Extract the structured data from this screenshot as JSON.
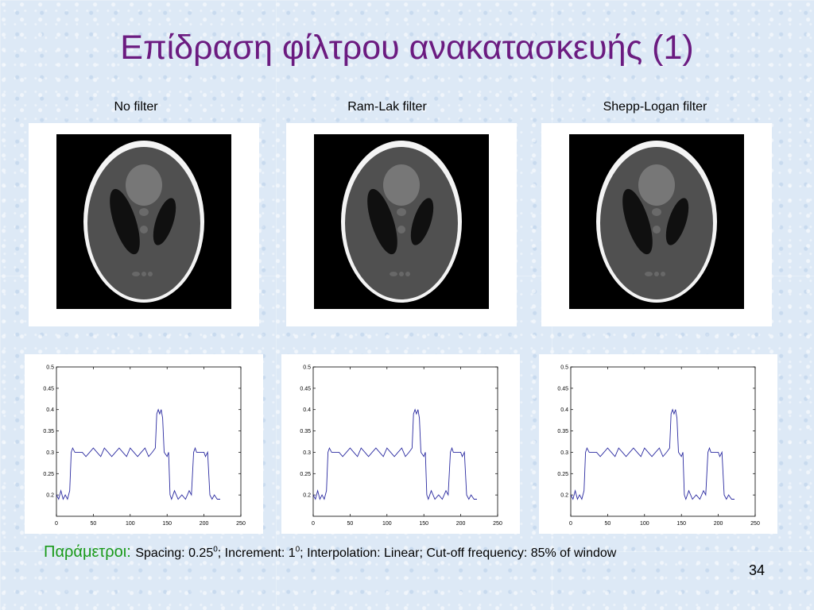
{
  "slide": {
    "title": "Επίδραση φίλτρου ανακατασκευής (1)",
    "page_number": "34"
  },
  "panels": [
    {
      "label": "No filter"
    },
    {
      "label": "Ram-Lak filter"
    },
    {
      "label": "Shepp-Logan filter"
    }
  ],
  "parameters": {
    "label": "Παράμετροι:",
    "spacing_text": "Spacing: 0.25",
    "spacing_sup": "0",
    "increment_text": "; Increment: 1",
    "increment_sup": "0",
    "rest_text": "; Interpolation: Linear; Cut-off frequency: 85% of window"
  },
  "colors": {
    "title": "#6b1b80",
    "params_label": "#1a9a1a",
    "plot_line": "#2a2aa0"
  },
  "chart_data": [
    {
      "type": "line",
      "title": "",
      "xlabel": "",
      "ylabel": "",
      "xlim": [
        0,
        250
      ],
      "ylim": [
        0.15,
        0.5
      ],
      "xticks": [
        "0",
        "50",
        "100",
        "150",
        "200",
        "250"
      ],
      "yticks": [
        "0.2",
        "0.25",
        "0.3",
        "0.35",
        "0.4",
        "0.45",
        "0.5"
      ],
      "series": [
        {
          "x": [
            0,
            3,
            6,
            9,
            12,
            15,
            18,
            20,
            22,
            25,
            30,
            35,
            40,
            45,
            50,
            55,
            60,
            65,
            70,
            75,
            80,
            85,
            90,
            95,
            100,
            105,
            110,
            115,
            120,
            125,
            130,
            134,
            136,
            138,
            140,
            142,
            144,
            146,
            150,
            152,
            154,
            156,
            160,
            165,
            170,
            175,
            180,
            183,
            186,
            188,
            190,
            195,
            200,
            202,
            205,
            208,
            211,
            214,
            218,
            222
          ],
          "y": [
            0.2,
            0.19,
            0.21,
            0.19,
            0.2,
            0.19,
            0.21,
            0.3,
            0.31,
            0.3,
            0.3,
            0.3,
            0.29,
            0.3,
            0.31,
            0.3,
            0.29,
            0.31,
            0.3,
            0.29,
            0.3,
            0.31,
            0.3,
            0.29,
            0.31,
            0.3,
            0.29,
            0.3,
            0.31,
            0.29,
            0.3,
            0.31,
            0.39,
            0.4,
            0.39,
            0.4,
            0.38,
            0.3,
            0.29,
            0.3,
            0.2,
            0.19,
            0.21,
            0.19,
            0.2,
            0.19,
            0.21,
            0.2,
            0.3,
            0.31,
            0.3,
            0.3,
            0.3,
            0.29,
            0.3,
            0.2,
            0.19,
            0.2,
            0.19,
            0.19
          ]
        }
      ]
    },
    {
      "type": "line",
      "title": "",
      "xlabel": "",
      "ylabel": "",
      "xlim": [
        0,
        250
      ],
      "ylim": [
        0.15,
        0.5
      ],
      "xticks": [
        "0",
        "50",
        "100",
        "150",
        "200",
        "250"
      ],
      "yticks": [
        "0.2",
        "0.25",
        "0.3",
        "0.35",
        "0.4",
        "0.45",
        "0.5"
      ],
      "series": [
        {
          "x": [
            0,
            3,
            6,
            9,
            12,
            15,
            18,
            20,
            22,
            25,
            30,
            35,
            40,
            45,
            50,
            55,
            60,
            65,
            70,
            75,
            80,
            85,
            90,
            95,
            100,
            105,
            110,
            115,
            120,
            125,
            130,
            134,
            136,
            138,
            140,
            142,
            144,
            146,
            150,
            152,
            154,
            156,
            160,
            165,
            170,
            175,
            180,
            183,
            186,
            188,
            190,
            195,
            200,
            202,
            205,
            208,
            211,
            214,
            218,
            222
          ],
          "y": [
            0.2,
            0.19,
            0.21,
            0.19,
            0.2,
            0.19,
            0.21,
            0.3,
            0.31,
            0.3,
            0.3,
            0.3,
            0.29,
            0.3,
            0.31,
            0.3,
            0.29,
            0.31,
            0.3,
            0.29,
            0.3,
            0.31,
            0.3,
            0.29,
            0.31,
            0.3,
            0.29,
            0.3,
            0.31,
            0.29,
            0.3,
            0.31,
            0.39,
            0.4,
            0.39,
            0.4,
            0.38,
            0.3,
            0.29,
            0.3,
            0.2,
            0.19,
            0.21,
            0.19,
            0.2,
            0.19,
            0.21,
            0.2,
            0.3,
            0.31,
            0.3,
            0.3,
            0.3,
            0.29,
            0.3,
            0.2,
            0.19,
            0.2,
            0.19,
            0.19
          ]
        }
      ]
    },
    {
      "type": "line",
      "title": "",
      "xlabel": "",
      "ylabel": "",
      "xlim": [
        0,
        250
      ],
      "ylim": [
        0.15,
        0.5
      ],
      "xticks": [
        "0",
        "50",
        "100",
        "150",
        "200",
        "250"
      ],
      "yticks": [
        "0.2",
        "0.25",
        "0.3",
        "0.35",
        "0.4",
        "0.45",
        "0.5"
      ],
      "series": [
        {
          "x": [
            0,
            3,
            6,
            9,
            12,
            15,
            18,
            20,
            22,
            25,
            30,
            35,
            40,
            45,
            50,
            55,
            60,
            65,
            70,
            75,
            80,
            85,
            90,
            95,
            100,
            105,
            110,
            115,
            120,
            125,
            130,
            134,
            136,
            138,
            140,
            142,
            144,
            146,
            150,
            152,
            154,
            156,
            160,
            165,
            170,
            175,
            180,
            183,
            186,
            188,
            190,
            195,
            200,
            202,
            205,
            208,
            211,
            214,
            218,
            222
          ],
          "y": [
            0.2,
            0.19,
            0.21,
            0.19,
            0.2,
            0.19,
            0.21,
            0.3,
            0.31,
            0.3,
            0.3,
            0.3,
            0.29,
            0.3,
            0.31,
            0.3,
            0.29,
            0.31,
            0.3,
            0.29,
            0.3,
            0.31,
            0.3,
            0.29,
            0.31,
            0.3,
            0.29,
            0.3,
            0.31,
            0.29,
            0.3,
            0.31,
            0.39,
            0.4,
            0.39,
            0.4,
            0.38,
            0.3,
            0.29,
            0.3,
            0.2,
            0.19,
            0.21,
            0.19,
            0.2,
            0.19,
            0.21,
            0.2,
            0.3,
            0.31,
            0.3,
            0.3,
            0.3,
            0.29,
            0.3,
            0.2,
            0.19,
            0.2,
            0.19,
            0.19
          ]
        }
      ]
    }
  ]
}
